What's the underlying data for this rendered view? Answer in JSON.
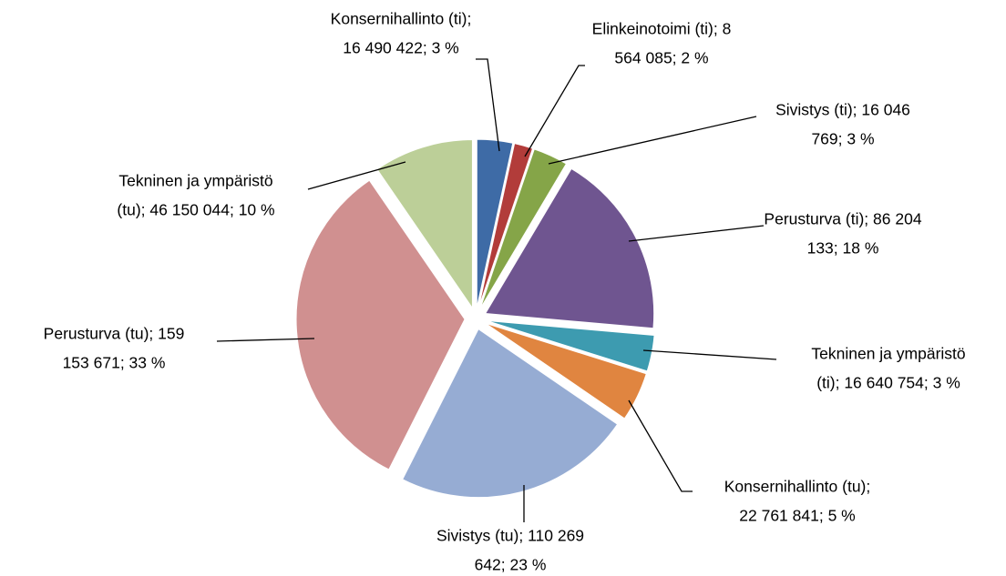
{
  "chart_data": {
    "type": "pie",
    "labels": [
      [
        "Konsernihallinto (ti);",
        "16 490 422; 3 %"
      ],
      [
        "Elinkeinotoimi (ti); 8",
        "564 085; 2 %"
      ],
      [
        "Sivistys (ti); 16 046",
        "769; 3 %"
      ],
      [
        "Perusturva (ti); 86 204",
        "133; 18 %"
      ],
      [
        "Tekninen ja ympäristö",
        "(ti); 16 640 754; 3 %"
      ],
      [
        "Konsernihallinto (tu);",
        "22 761 841; 5 %"
      ],
      [
        "Sivistys (tu); 110 269",
        "642; 23 %"
      ],
      [
        "Perusturva (tu); 159",
        "153 671; 33 %"
      ],
      [
        "Tekninen ja ympäristö",
        "(tu); 46 150 044; 10 %"
      ]
    ],
    "values": [
      16490422,
      8564085,
      16046769,
      86204133,
      16640754,
      22761841,
      110269642,
      159153671,
      46150044
    ],
    "colors": [
      "#3e6ba6",
      "#b23c3a",
      "#85a548",
      "#6f5590",
      "#3d9bb0",
      "#e08540",
      "#96acd3",
      "#d09090",
      "#bccf98"
    ]
  }
}
